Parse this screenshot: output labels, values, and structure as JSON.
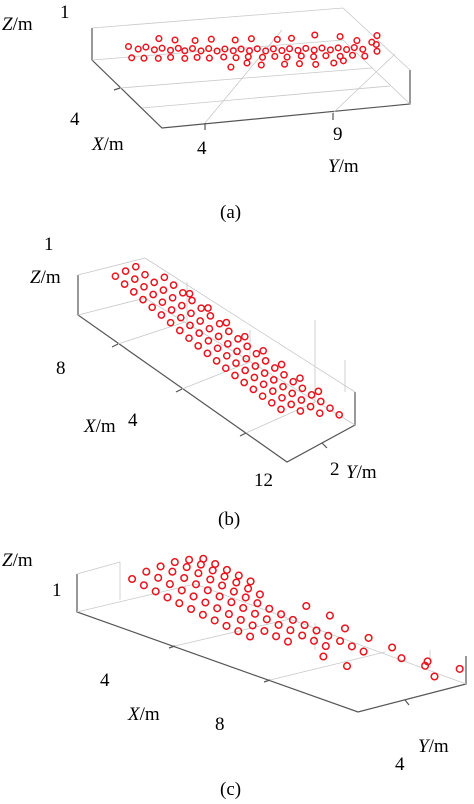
{
  "chart_data": [
    {
      "panel": "a",
      "type": "scatter",
      "caption": "(a)",
      "xlabel": "X",
      "ylabel": "Y",
      "zlabel": "Z",
      "unit": "/m",
      "x_ticks": [
        "4"
      ],
      "y_ticks": [
        "4",
        "9"
      ],
      "z_ticks": [
        "1"
      ],
      "grid": true,
      "point_color": "#e8141e",
      "points": [
        [
          2.0,
          1.2,
          0.72
        ],
        [
          2.0,
          1.7,
          0.62
        ],
        [
          2.0,
          2.1,
          0.66
        ],
        [
          2.1,
          2.5,
          0.58
        ],
        [
          2.1,
          2.9,
          0.61
        ],
        [
          2.2,
          3.3,
          0.55
        ],
        [
          2.2,
          3.7,
          0.59
        ],
        [
          2.3,
          4.0,
          0.52
        ],
        [
          2.3,
          4.4,
          0.57
        ],
        [
          2.4,
          4.8,
          0.5
        ],
        [
          2.4,
          5.2,
          0.55
        ],
        [
          2.5,
          5.6,
          0.48
        ],
        [
          2.5,
          6.0,
          0.52
        ],
        [
          2.6,
          6.4,
          0.47
        ],
        [
          2.6,
          6.8,
          0.5
        ],
        [
          2.7,
          7.2,
          0.45
        ],
        [
          2.7,
          7.6,
          0.49
        ],
        [
          2.8,
          8.0,
          0.43
        ],
        [
          2.8,
          8.4,
          0.47
        ],
        [
          2.9,
          8.8,
          0.42
        ],
        [
          2.9,
          9.2,
          0.46
        ],
        [
          3.0,
          9.6,
          0.41
        ],
        [
          3.0,
          10.0,
          0.45
        ],
        [
          3.1,
          10.4,
          0.4
        ],
        [
          3.1,
          10.8,
          0.44
        ],
        [
          3.2,
          11.2,
          0.39
        ],
        [
          3.2,
          11.6,
          0.43
        ],
        [
          3.3,
          12.0,
          0.38
        ],
        [
          3.3,
          12.4,
          0.42
        ],
        [
          3.4,
          12.8,
          0.37
        ],
        [
          2.2,
          1.3,
          0.42
        ],
        [
          2.3,
          1.9,
          0.4
        ],
        [
          2.4,
          2.6,
          0.38
        ],
        [
          2.5,
          3.2,
          0.4
        ],
        [
          2.6,
          3.9,
          0.36
        ],
        [
          2.7,
          4.5,
          0.38
        ],
        [
          2.8,
          5.1,
          0.35
        ],
        [
          2.9,
          5.8,
          0.37
        ],
        [
          3.0,
          6.4,
          0.34
        ],
        [
          3.1,
          7.0,
          0.36
        ],
        [
          3.2,
          7.7,
          0.33
        ],
        [
          3.3,
          8.3,
          0.35
        ],
        [
          3.4,
          8.9,
          0.32
        ],
        [
          3.5,
          9.6,
          0.34
        ],
        [
          3.6,
          10.2,
          0.31
        ],
        [
          3.7,
          10.8,
          0.33
        ],
        [
          3.8,
          11.5,
          0.3
        ],
        [
          3.9,
          12.1,
          0.32
        ],
        [
          4.0,
          12.7,
          0.29
        ],
        [
          3.6,
          13.2,
          0.6
        ],
        [
          3.4,
          13.5,
          0.48
        ],
        [
          3.8,
          13.4,
          0.36
        ],
        [
          3.2,
          13.6,
          0.7
        ],
        [
          2.6,
          10.6,
          0.74
        ],
        [
          2.9,
          11.8,
          0.7
        ],
        [
          3.1,
          12.6,
          0.58
        ],
        [
          3.9,
          8.6,
          0.22
        ],
        [
          4.1,
          9.3,
          0.24
        ],
        [
          4.2,
          10.1,
          0.2
        ],
        [
          4.3,
          11.0,
          0.22
        ],
        [
          4.0,
          11.6,
          0.2
        ],
        [
          3.7,
          5.9,
          0.22
        ],
        [
          3.5,
          6.8,
          0.26
        ],
        [
          3.9,
          7.4,
          0.25
        ],
        [
          2.0,
          3.6,
          0.8
        ],
        [
          2.1,
          4.6,
          0.76
        ],
        [
          2.2,
          5.4,
          0.78
        ],
        [
          2.3,
          6.6,
          0.72
        ],
        [
          2.4,
          7.4,
          0.74
        ],
        [
          2.5,
          8.7,
          0.68
        ],
        [
          2.6,
          9.4,
          0.7
        ],
        [
          1.9,
          2.8,
          0.86
        ]
      ]
    },
    {
      "panel": "b",
      "type": "scatter",
      "caption": "(b)",
      "xlabel": "X",
      "ylabel": "Y",
      "zlabel": "Z",
      "unit": "/m",
      "x_ticks": [
        "8",
        "4",
        "12"
      ],
      "y_ticks": [
        "2"
      ],
      "z_ticks": [
        "1"
      ],
      "grid": true,
      "point_color": "#e8141e",
      "points": [
        [
          1.0,
          1.0,
          0.95
        ],
        [
          1.0,
          1.6,
          0.97
        ],
        [
          1.0,
          2.2,
          0.96
        ],
        [
          1.5,
          1.0,
          0.88
        ],
        [
          1.5,
          1.6,
          0.9
        ],
        [
          1.5,
          2.2,
          0.89
        ],
        [
          2.0,
          1.0,
          0.82
        ],
        [
          2.0,
          1.6,
          0.84
        ],
        [
          2.0,
          2.2,
          0.83
        ],
        [
          2.0,
          2.8,
          0.85
        ],
        [
          2.5,
          1.0,
          0.76
        ],
        [
          2.5,
          1.6,
          0.78
        ],
        [
          2.5,
          2.2,
          0.77
        ],
        [
          2.5,
          2.8,
          0.79
        ],
        [
          3.0,
          1.0,
          0.7
        ],
        [
          3.0,
          1.6,
          0.72
        ],
        [
          3.0,
          2.2,
          0.71
        ],
        [
          3.0,
          2.8,
          0.73
        ],
        [
          3.5,
          1.0,
          0.64
        ],
        [
          3.5,
          1.6,
          0.66
        ],
        [
          3.5,
          2.2,
          0.65
        ],
        [
          3.5,
          2.8,
          0.67
        ],
        [
          4.0,
          1.0,
          0.58
        ],
        [
          4.0,
          1.6,
          0.6
        ],
        [
          4.0,
          2.2,
          0.59
        ],
        [
          4.0,
          2.8,
          0.61
        ],
        [
          4.5,
          1.0,
          0.52
        ],
        [
          4.5,
          1.6,
          0.54
        ],
        [
          4.5,
          2.2,
          0.53
        ],
        [
          4.5,
          2.8,
          0.55
        ],
        [
          5.0,
          1.0,
          0.46
        ],
        [
          5.0,
          1.6,
          0.48
        ],
        [
          5.0,
          2.2,
          0.47
        ],
        [
          5.0,
          2.8,
          0.49
        ],
        [
          5.5,
          1.0,
          0.4
        ],
        [
          5.5,
          1.6,
          0.42
        ],
        [
          5.5,
          2.2,
          0.41
        ],
        [
          5.5,
          2.8,
          0.43
        ],
        [
          6.0,
          1.0,
          0.35
        ],
        [
          6.0,
          1.6,
          0.37
        ],
        [
          6.0,
          2.2,
          0.36
        ],
        [
          6.0,
          2.8,
          0.38
        ],
        [
          6.5,
          1.0,
          0.3
        ],
        [
          6.5,
          1.6,
          0.32
        ],
        [
          6.5,
          2.2,
          0.31
        ],
        [
          6.5,
          2.8,
          0.33
        ],
        [
          7.0,
          1.0,
          0.26
        ],
        [
          7.0,
          1.6,
          0.28
        ],
        [
          7.0,
          2.2,
          0.27
        ],
        [
          7.0,
          2.8,
          0.29
        ],
        [
          7.5,
          1.0,
          0.22
        ],
        [
          7.5,
          1.6,
          0.24
        ],
        [
          7.5,
          2.2,
          0.23
        ],
        [
          7.5,
          2.8,
          0.25
        ],
        [
          8.0,
          1.0,
          0.19
        ],
        [
          8.0,
          1.6,
          0.21
        ],
        [
          8.0,
          2.2,
          0.2
        ],
        [
          8.0,
          2.8,
          0.22
        ],
        [
          8.5,
          1.0,
          0.17
        ],
        [
          8.5,
          1.6,
          0.19
        ],
        [
          8.5,
          2.2,
          0.18
        ],
        [
          8.5,
          2.8,
          0.2
        ],
        [
          9.0,
          1.0,
          0.15
        ],
        [
          9.0,
          1.6,
          0.17
        ],
        [
          9.0,
          2.2,
          0.16
        ],
        [
          9.0,
          2.8,
          0.18
        ],
        [
          9.5,
          1.0,
          0.14
        ],
        [
          9.5,
          1.6,
          0.16
        ],
        [
          9.5,
          2.2,
          0.15
        ],
        [
          9.5,
          2.8,
          0.17
        ],
        [
          10.0,
          1.0,
          0.13
        ],
        [
          10.0,
          1.6,
          0.15
        ],
        [
          10.0,
          2.2,
          0.14
        ],
        [
          10.0,
          2.8,
          0.16
        ],
        [
          10.5,
          1.6,
          0.14
        ],
        [
          10.5,
          2.2,
          0.13
        ],
        [
          10.5,
          2.8,
          0.15
        ],
        [
          11.0,
          2.2,
          0.12
        ],
        [
          11.0,
          2.8,
          0.14
        ],
        [
          11.5,
          2.8,
          0.13
        ],
        [
          3.0,
          3.2,
          0.55
        ],
        [
          4.0,
          3.2,
          0.48
        ],
        [
          5.0,
          3.2,
          0.4
        ],
        [
          6.0,
          3.2,
          0.34
        ],
        [
          7.0,
          3.2,
          0.28
        ],
        [
          8.0,
          3.2,
          0.24
        ],
        [
          9.0,
          3.2,
          0.2
        ],
        [
          10.0,
          3.2,
          0.18
        ]
      ]
    },
    {
      "panel": "c",
      "type": "scatter",
      "caption": "(c)",
      "xlabel": "X",
      "ylabel": "Y",
      "zlabel": "Z",
      "unit": "/m",
      "x_ticks": [
        "4",
        "8"
      ],
      "y_ticks": [
        "4"
      ],
      "z_ticks": [
        "1"
      ],
      "grid": true,
      "point_color": "#e8141e",
      "points": [
        [
          1.0,
          1.0,
          0.9
        ],
        [
          1.0,
          1.5,
          1.05
        ],
        [
          1.0,
          2.0,
          1.12
        ],
        [
          1.0,
          2.5,
          1.15
        ],
        [
          1.0,
          3.0,
          1.1
        ],
        [
          1.0,
          3.5,
          1.0
        ],
        [
          1.5,
          1.0,
          0.82
        ],
        [
          1.5,
          1.5,
          0.98
        ],
        [
          1.5,
          2.0,
          1.08
        ],
        [
          1.5,
          2.5,
          1.12
        ],
        [
          1.5,
          3.0,
          1.08
        ],
        [
          1.5,
          3.5,
          0.96
        ],
        [
          2.0,
          1.0,
          0.75
        ],
        [
          2.0,
          1.5,
          0.9
        ],
        [
          2.0,
          2.0,
          1.0
        ],
        [
          2.0,
          2.5,
          1.05
        ],
        [
          2.0,
          3.0,
          1.02
        ],
        [
          2.0,
          3.5,
          0.9
        ],
        [
          2.5,
          1.0,
          0.68
        ],
        [
          2.5,
          1.5,
          0.82
        ],
        [
          2.5,
          2.0,
          0.92
        ],
        [
          2.5,
          2.5,
          0.97
        ],
        [
          2.5,
          3.0,
          0.95
        ],
        [
          2.5,
          3.5,
          0.84
        ],
        [
          3.0,
          1.0,
          0.62
        ],
        [
          3.0,
          1.5,
          0.75
        ],
        [
          3.0,
          2.0,
          0.85
        ],
        [
          3.0,
          2.5,
          0.9
        ],
        [
          3.0,
          3.0,
          0.88
        ],
        [
          3.0,
          3.5,
          0.78
        ],
        [
          3.5,
          1.0,
          0.56
        ],
        [
          3.5,
          1.5,
          0.68
        ],
        [
          3.5,
          2.0,
          0.78
        ],
        [
          3.5,
          2.5,
          0.83
        ],
        [
          3.5,
          3.0,
          0.81
        ],
        [
          4.0,
          1.0,
          0.5
        ],
        [
          4.0,
          1.5,
          0.62
        ],
        [
          4.0,
          2.0,
          0.72
        ],
        [
          4.0,
          2.5,
          0.77
        ],
        [
          4.0,
          3.0,
          0.75
        ],
        [
          4.5,
          1.0,
          0.45
        ],
        [
          4.5,
          1.5,
          0.56
        ],
        [
          4.5,
          2.0,
          0.66
        ],
        [
          4.5,
          2.5,
          0.71
        ],
        [
          5.0,
          1.0,
          0.4
        ],
        [
          5.0,
          1.5,
          0.5
        ],
        [
          5.0,
          2.0,
          0.6
        ],
        [
          5.0,
          2.5,
          0.66
        ],
        [
          5.5,
          1.0,
          0.36
        ],
        [
          5.5,
          1.5,
          0.45
        ],
        [
          5.5,
          2.0,
          0.55
        ],
        [
          5.5,
          2.5,
          0.61
        ],
        [
          6.0,
          1.0,
          0.32
        ],
        [
          6.0,
          1.5,
          0.4
        ],
        [
          6.0,
          2.0,
          0.5
        ],
        [
          6.0,
          2.5,
          0.56
        ],
        [
          6.5,
          1.5,
          0.36
        ],
        [
          6.5,
          2.0,
          0.46
        ],
        [
          6.5,
          2.5,
          0.52
        ],
        [
          7.0,
          1.5,
          0.32
        ],
        [
          7.0,
          2.0,
          0.42
        ],
        [
          7.0,
          2.5,
          0.48
        ],
        [
          7.5,
          2.0,
          0.38
        ],
        [
          7.5,
          2.5,
          0.44
        ],
        [
          8.0,
          2.0,
          0.34
        ],
        [
          8.0,
          2.5,
          0.4
        ],
        [
          8.5,
          2.5,
          0.36
        ],
        [
          9.0,
          2.5,
          0.32
        ],
        [
          7.0,
          3.5,
          0.28
        ],
        [
          8.0,
          3.5,
          0.24
        ],
        [
          9.0,
          3.5,
          0.2
        ],
        [
          10.0,
          3.0,
          0.26
        ],
        [
          10.5,
          3.5,
          0.16
        ],
        [
          11.0,
          3.0,
          0.3
        ],
        [
          11.5,
          3.8,
          0.12
        ],
        [
          8.5,
          1.5,
          0.24
        ],
        [
          9.5,
          1.5,
          0.2
        ],
        [
          6.0,
          3.8,
          0.36
        ],
        [
          5.0,
          3.8,
          0.4
        ],
        [
          12.0,
          2.5,
          0.36
        ]
      ]
    }
  ]
}
